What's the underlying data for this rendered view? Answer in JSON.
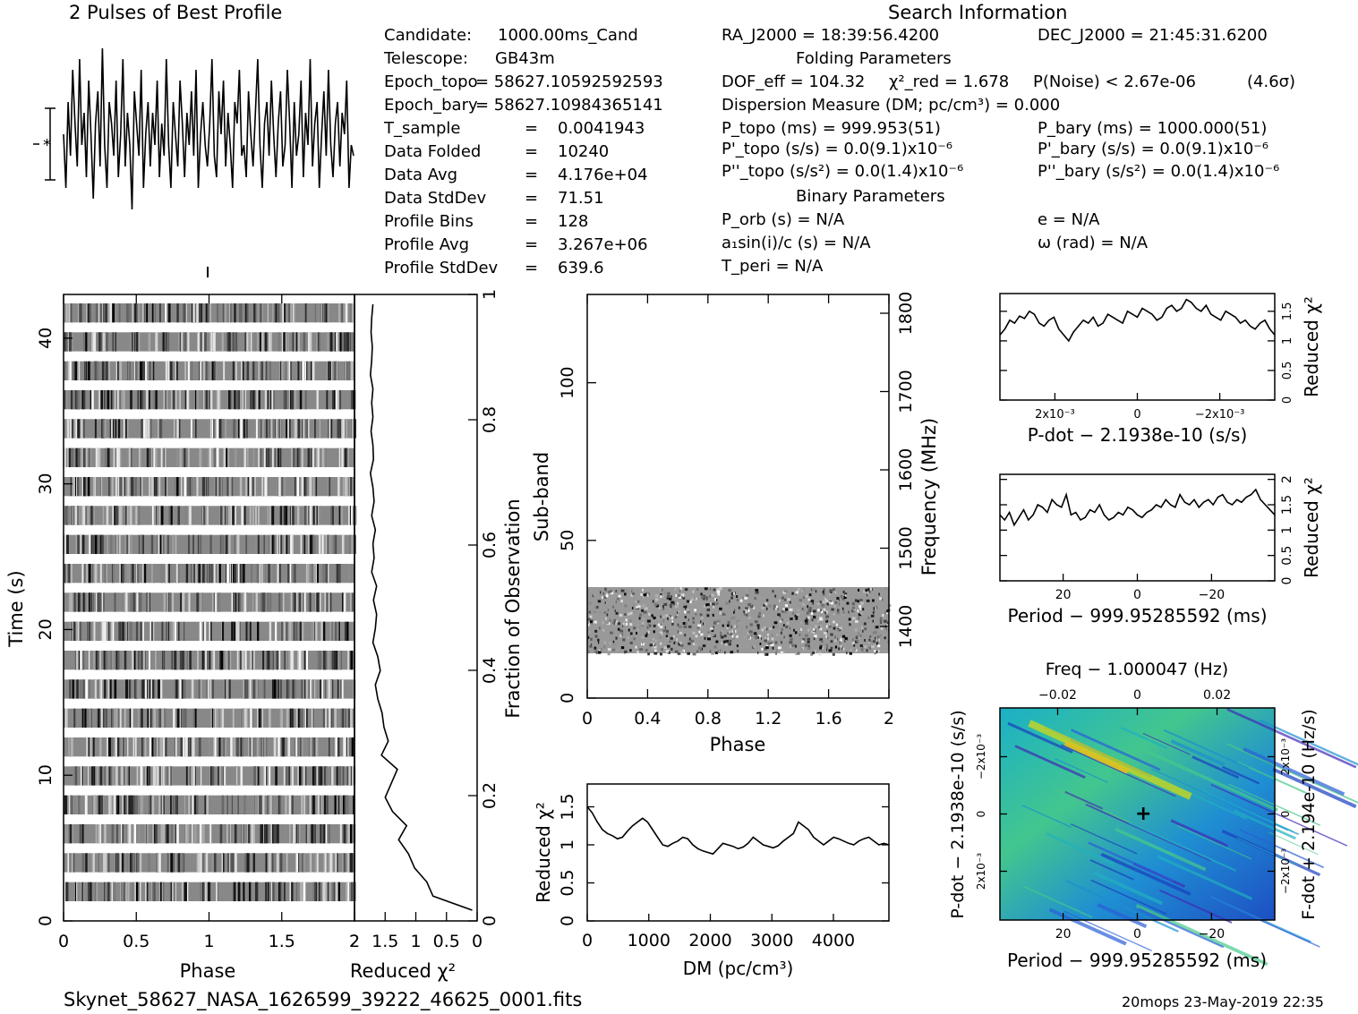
{
  "header": {
    "profile_title": "2 Pulses of Best Profile",
    "search_title": "Search Information",
    "folding_title": "Folding Parameters",
    "binary_title": "Binary Parameters"
  },
  "left_info": [
    {
      "k": "Candidate:",
      "v": "1000.00ms_Cand"
    },
    {
      "k": "Telescope:",
      "v": "GB43m"
    },
    {
      "k": "Epoch_topo",
      "v": "= 58627.10592592593"
    },
    {
      "k": "Epoch_bary",
      "v": "= 58627.10984365141"
    },
    {
      "k": "T_sample",
      "v": "0.0041943"
    },
    {
      "k": "Data Folded",
      "v": "10240"
    },
    {
      "k": "Data Avg",
      "v": "4.176e+04"
    },
    {
      "k": "Data StdDev",
      "v": "71.51"
    },
    {
      "k": "Profile Bins",
      "v": "128"
    },
    {
      "k": "Profile Avg",
      "v": "3.267e+06"
    },
    {
      "k": "Profile StdDev",
      "v": "639.6"
    }
  ],
  "search": {
    "ra": "RA_J2000 = 18:39:56.4200",
    "dec": "DEC_J2000 = 21:45:31.6200",
    "dof": "DOF_eff = 104.32",
    "chi2": "χ²_red = 1.678",
    "pnoise": "P(Noise) < 2.67e-06",
    "sigma": "(4.6σ)",
    "dm": "Dispersion Measure (DM; pc/cm³) = 0.000",
    "p_topo": "P_topo (ms) = 999.953(51)",
    "p_bary": "P_bary (ms) = 1000.000(51)",
    "pd_topo": "P'_topo (s/s) = 0.0(9.1)x10⁻⁶",
    "pd_bary": "P'_bary (s/s) = 0.0(9.1)x10⁻⁶",
    "pdd_topo": "P''_topo (s/s²) = 0.0(1.4)x10⁻⁶",
    "pdd_bary": "P''_bary (s/s²) = 0.0(1.4)x10⁻⁶",
    "porb": "P_orb (s) = N/A",
    "e": "e = N/A",
    "a1": "a₁sin(i)/c (s) = N/A",
    "omega": "ω (rad) = N/A",
    "tperi": "T_peri = N/A"
  },
  "footer": {
    "filename": "Skynet_58627_NASA_1626599_39222_46625_0001.fits",
    "stamp": "20mops 23-May-2019 22:35"
  },
  "chart_data": [
    {
      "id": "time-phase",
      "type": "heatmap",
      "xlabel": "Phase",
      "ylabel": "Time (s)",
      "right_label": "Fraction of Observation",
      "xticks": [
        "0",
        "0.5",
        "1",
        "1.5",
        "2"
      ],
      "yticks": [
        "0",
        "10",
        "20",
        "30",
        "40"
      ],
      "right_ticks": [
        "0",
        "0.2",
        "0.4",
        "0.6",
        "0.8",
        "1"
      ],
      "xlim": [
        0,
        2
      ],
      "ylim": [
        0,
        43
      ]
    },
    {
      "id": "time-chi2",
      "type": "line",
      "xlabel": "Reduced χ²",
      "xticks": [
        "2",
        "1.5",
        "1",
        "0.5",
        "0"
      ],
      "xlim": [
        2,
        0
      ],
      "values": [
        0.08,
        0.72,
        0.82,
        1.02,
        1.12,
        1.28,
        1.15,
        1.38,
        1.5,
        1.4,
        1.3,
        1.56,
        1.45,
        1.52,
        1.55,
        1.62,
        1.66,
        1.58,
        1.62,
        1.7,
        1.66,
        1.64,
        1.69,
        1.64,
        1.72,
        1.68,
        1.7,
        1.66,
        1.72,
        1.68,
        1.7,
        1.74,
        1.69,
        1.7,
        1.73,
        1.7,
        1.72,
        1.7,
        1.74,
        1.72,
        1.71,
        1.73,
        1.72,
        1.7
      ]
    },
    {
      "id": "subband-phase",
      "type": "heatmap",
      "xlabel": "Phase",
      "ylabel": "Sub-band",
      "right_label": "Frequency (MHz)",
      "xticks": [
        "0",
        "0.4",
        "0.8",
        "1.2",
        "1.6",
        "2"
      ],
      "yticks": [
        "0",
        "50",
        "100"
      ],
      "right_ticks": [
        "1400",
        "1500",
        "1600",
        "1700",
        "1800"
      ],
      "xlim": [
        0,
        2
      ],
      "ylim": [
        0,
        128
      ],
      "band": [
        14,
        35
      ]
    },
    {
      "id": "dm-chi2",
      "type": "line",
      "xlabel": "DM (pc/cm³)",
      "ylabel": "Reduced χ²",
      "xticks": [
        "0",
        "1000",
        "2000",
        "3000",
        "4000"
      ],
      "yticks": [
        "0",
        "0.5",
        "1",
        "1.5"
      ],
      "xlim": [
        0,
        4900
      ],
      "ylim": [
        0,
        1.8
      ],
      "x_start": 0,
      "x_end": 4900,
      "values": [
        1.5,
        1.42,
        1.3,
        1.2,
        1.15,
        1.12,
        1.08,
        1.1,
        1.18,
        1.25,
        1.3,
        1.35,
        1.3,
        1.2,
        1.1,
        1.0,
        0.98,
        1.02,
        1.05,
        1.1,
        1.08,
        1.0,
        0.95,
        0.92,
        0.9,
        0.88,
        0.95,
        1.02,
        1.0,
        0.98,
        0.95,
        0.97,
        1.02,
        1.1,
        1.05,
        1.0,
        0.98,
        0.96,
        0.99,
        1.05,
        1.1,
        1.15,
        1.3,
        1.25,
        1.2,
        1.1,
        1.05,
        1.0,
        1.05,
        1.1,
        1.08,
        1.05,
        1.02,
        1.0,
        1.05,
        1.08,
        1.1,
        1.05,
        1.0,
        1.02,
        1.0
      ]
    },
    {
      "id": "pdot-chi2",
      "type": "line",
      "xlabel": "P-dot − 2.1938e-10 (s/s)",
      "ylabel": "Reduced χ²",
      "xticks": [
        "2x10⁻³",
        "0",
        "−2x10⁻³"
      ],
      "yticks": [
        "0",
        "0.5",
        "1",
        "1.5"
      ],
      "xlim": [
        0.0033,
        -0.0033
      ],
      "ylim": [
        0,
        1.8
      ],
      "x_start": 0.0033,
      "x_end": -0.0033,
      "values": [
        1.1,
        1.2,
        1.35,
        1.3,
        1.42,
        1.38,
        1.5,
        1.45,
        1.3,
        1.25,
        1.35,
        1.4,
        1.2,
        1.1,
        1.0,
        1.15,
        1.25,
        1.35,
        1.3,
        1.4,
        1.25,
        1.3,
        1.45,
        1.4,
        1.35,
        1.3,
        1.5,
        1.45,
        1.4,
        1.55,
        1.5,
        1.45,
        1.35,
        1.4,
        1.55,
        1.6,
        1.5,
        1.55,
        1.7,
        1.65,
        1.55,
        1.5,
        1.6,
        1.45,
        1.4,
        1.35,
        1.5,
        1.45,
        1.4,
        1.3,
        1.35,
        1.25,
        1.2,
        1.3,
        1.35,
        1.2,
        1.1
      ]
    },
    {
      "id": "period-chi2",
      "type": "line",
      "xlabel": "Period − 999.95285592 (ms)",
      "ylabel": "Reduced χ²",
      "xticks": [
        "20",
        "0",
        "−20"
      ],
      "yticks": [
        "0",
        "0.5",
        "1",
        "1.5",
        "2"
      ],
      "xlim": [
        37,
        -37
      ],
      "ylim": [
        0,
        2.1
      ],
      "x_start": 37,
      "x_end": -37,
      "values": [
        1.3,
        1.2,
        1.35,
        1.1,
        1.25,
        1.4,
        1.2,
        1.3,
        1.5,
        1.45,
        1.35,
        1.6,
        1.5,
        1.45,
        1.7,
        1.3,
        1.35,
        1.2,
        1.25,
        1.4,
        1.35,
        1.5,
        1.3,
        1.2,
        1.25,
        1.35,
        1.3,
        1.45,
        1.4,
        1.3,
        1.25,
        1.35,
        1.4,
        1.5,
        1.45,
        1.6,
        1.5,
        1.45,
        1.7,
        1.55,
        1.5,
        1.6,
        1.45,
        1.55,
        1.6,
        1.5,
        1.65,
        1.7,
        1.55,
        1.5,
        1.6,
        1.55,
        1.65,
        1.7,
        1.8,
        1.6,
        1.5,
        1.4,
        1.3
      ]
    },
    {
      "id": "p-pdot",
      "type": "heatmap",
      "xlabel": "Period − 999.95285592 (ms)",
      "ylabel": "P-dot − 2.1938e-10 (s/s)",
      "top_label": "Freq − 1.000047 (Hz)",
      "right_label": "F-dot + 2.194e-10 (Hz/s)",
      "xticks": [
        "20",
        "0",
        "−20"
      ],
      "top_ticks": [
        "−0.02",
        "0",
        "0.02"
      ],
      "yticks": [
        "2x10⁻³",
        "0",
        "−2x10⁻³"
      ],
      "right_ticks": [
        "−2x10⁻³",
        "0",
        "2x10⁻³"
      ],
      "xlim": [
        37,
        -37
      ]
    }
  ],
  "profile": {
    "values": [
      0.55,
      0.3,
      0.7,
      0.45,
      0.85,
      0.6,
      0.4,
      0.9,
      0.5,
      0.65,
      0.35,
      0.8,
      0.55,
      0.25,
      0.6,
      0.75,
      0.4,
      0.95,
      0.5,
      0.3,
      0.7,
      0.6,
      0.45,
      0.8,
      0.35,
      0.55,
      0.9,
      0.4,
      0.65,
      0.5,
      0.2,
      0.75,
      0.6,
      0.45,
      0.85,
      0.3,
      0.55,
      0.7,
      0.4,
      0.65,
      0.5,
      0.8,
      0.35,
      0.6,
      0.45,
      0.9,
      0.5,
      0.3,
      0.7,
      0.55,
      0.4,
      0.8,
      0.6,
      0.35,
      0.65,
      0.5,
      0.75,
      0.45,
      0.85,
      0.3,
      0.55,
      0.7,
      0.5,
      0.4,
      0.6,
      0.9,
      0.45,
      0.35,
      0.75,
      0.55,
      0.8,
      0.4,
      0.65,
      0.5,
      0.3,
      0.7,
      0.6,
      0.85,
      0.45,
      0.5,
      0.35,
      0.75,
      0.55,
      0.4,
      0.65,
      0.9,
      0.5,
      0.3,
      0.6,
      0.7,
      0.45,
      0.8,
      0.55,
      0.35,
      0.6,
      0.75,
      0.4,
      0.5,
      0.85,
      0.6,
      0.3,
      0.7,
      0.45,
      0.55,
      0.8,
      0.35,
      0.65,
      0.5,
      0.9,
      0.4,
      0.6,
      0.7,
      0.3,
      0.55,
      0.75,
      0.45,
      0.85,
      0.5,
      0.35,
      0.6,
      0.7,
      0.4,
      0.65,
      0.55,
      0.8,
      0.3,
      0.5,
      0.45
    ]
  }
}
